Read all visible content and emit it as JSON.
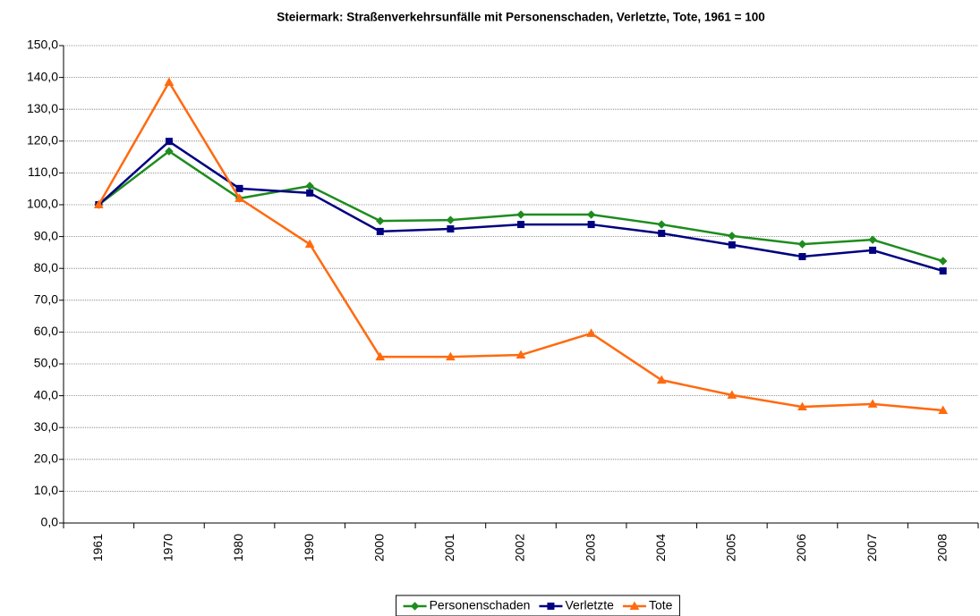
{
  "chart_data": {
    "type": "line",
    "title": "Steiermark: Straßenverkehrsunfälle mit Personenschaden, Verletzte, Tote, 1961 = 100",
    "categories": [
      "1961",
      "1970",
      "1980",
      "1990",
      "2000",
      "2001",
      "2002",
      "2003",
      "2004",
      "2005",
      "2006",
      "2007",
      "2008"
    ],
    "series": [
      {
        "name": "Personenschaden",
        "color": "#1e8c1e",
        "marker": "diamond",
        "values": [
          100,
          116.8,
          102.0,
          105.9,
          94.9,
          95.2,
          96.9,
          96.9,
          93.8,
          90.2,
          87.6,
          89.0,
          82.3
        ]
      },
      {
        "name": "Verletzte",
        "color": "#000080",
        "marker": "square",
        "values": [
          100,
          119.9,
          105.1,
          103.7,
          91.6,
          92.4,
          93.8,
          93.8,
          91.0,
          87.4,
          83.7,
          85.7,
          79.2
        ]
      },
      {
        "name": "Tote",
        "color": "#ff6a0f",
        "marker": "triangle",
        "values": [
          100,
          138.5,
          102.0,
          87.6,
          52.2,
          52.2,
          52.8,
          59.6,
          44.9,
          40.2,
          36.5,
          37.4,
          35.4
        ]
      }
    ],
    "ylim": [
      0,
      150
    ],
    "yticks": [
      {
        "value": 0,
        "label": "0,0"
      },
      {
        "value": 10,
        "label": "10,0"
      },
      {
        "value": 20,
        "label": "20,0"
      },
      {
        "value": 30,
        "label": "30,0"
      },
      {
        "value": 40,
        "label": "40,0"
      },
      {
        "value": 50,
        "label": "50,0"
      },
      {
        "value": 60,
        "label": "60,0"
      },
      {
        "value": 70,
        "label": "70,0"
      },
      {
        "value": 80,
        "label": "80,0"
      },
      {
        "value": 90,
        "label": "90,0"
      },
      {
        "value": 100,
        "label": "100,0"
      },
      {
        "value": 110,
        "label": "110,0"
      },
      {
        "value": 120,
        "label": "120,0"
      },
      {
        "value": 130,
        "label": "130,0"
      },
      {
        "value": 140,
        "label": "140,0"
      },
      {
        "value": 150,
        "label": "150,0"
      }
    ],
    "grid": true,
    "legend": "bottom"
  }
}
